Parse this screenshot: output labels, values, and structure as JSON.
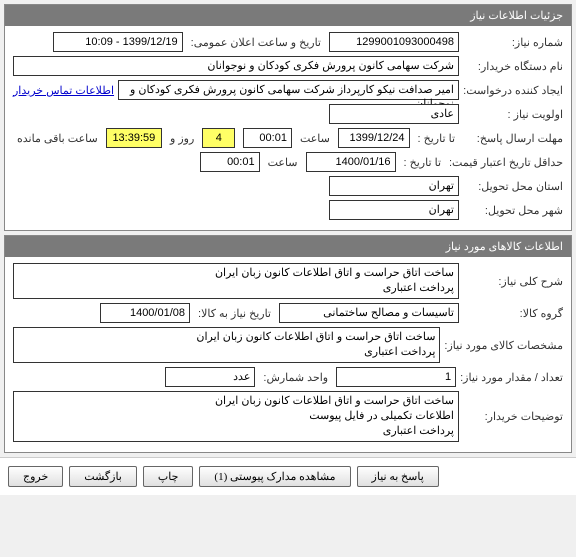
{
  "panel1": {
    "title": "جزئیات اطلاعات نیاز",
    "need_number_label": "شماره نیاز:",
    "need_number": "1299001093000498",
    "announce_label": "تاریخ و ساعت اعلان عمومی:",
    "announce_value": "1399/12/19 - 10:09",
    "buyer_label": "نام دستگاه خریدار:",
    "buyer_value": "شرکت سهامی کانون پرورش فکری کودکان و نوجوانان",
    "creator_label": "ایجاد کننده درخواست:",
    "creator_value": "امیر صدافت نیکو کارپرداز شرکت سهامی کانون پرورش فکری کودکان و نوجوانان",
    "contact_link": "اطلاعات تماس خریدار",
    "priority_label": "اولویت نیاز :",
    "priority_value": "عادی",
    "deadline_label": "مهلت ارسال پاسخ:",
    "until_label": "تا تاریخ :",
    "deadline_date": "1399/12/24",
    "time_label": "ساعت",
    "deadline_time": "00:01",
    "days_remaining": "4",
    "days_label": "روز و",
    "countdown": "13:39:59",
    "remain_label": "ساعت باقی مانده",
    "min_credit_label": "حداقل تاریخ اعتبار قیمت:",
    "min_credit_until": "تا تاریخ :",
    "min_credit_date": "1400/01/16",
    "min_credit_time": "00:01",
    "deliver_province_label": "استان محل تحویل:",
    "deliver_province": "تهران",
    "deliver_city_label": "شهر محل تحویل:",
    "deliver_city": "تهران"
  },
  "panel2": {
    "title": "اطلاعات کالاهای مورد نیاز",
    "general_desc_label": "شرح کلی نیاز:",
    "general_desc": "ساخت اتاق حراست و اتاق اطلاعات کانون زبان ایران\nپرداخت اعتباری",
    "goods_group_label": "گروه کالا:",
    "goods_group": "تاسیسات و مصالح ساختمانی",
    "need_by_label": "تاریخ نیاز به کالا:",
    "need_by": "1400/01/08",
    "spec_label": "مشخصات کالای مورد نیاز:",
    "spec": "ساخت اتاق حراست و اتاق اطلاعات کانون زبان ایران\nپرداخت اعتباری",
    "qty_label": "تعداد / مقدار مورد نیاز:",
    "qty": "1",
    "unit_label": "واحد شمارش:",
    "unit": "عدد",
    "buyer_notes_label": "توضیحات خریدار:",
    "buyer_notes": "ساخت اتاق حراست و اتاق اطلاعات کانون زبان ایران\nاطلاعات تکمیلی در فایل پیوست\nپرداخت اعتباری"
  },
  "buttons": {
    "reply": "پاسخ به نیاز",
    "attachments": "مشاهده مدارک پیوستی (1)",
    "print": "چاپ",
    "back": "بازگشت",
    "exit": "خروج"
  }
}
